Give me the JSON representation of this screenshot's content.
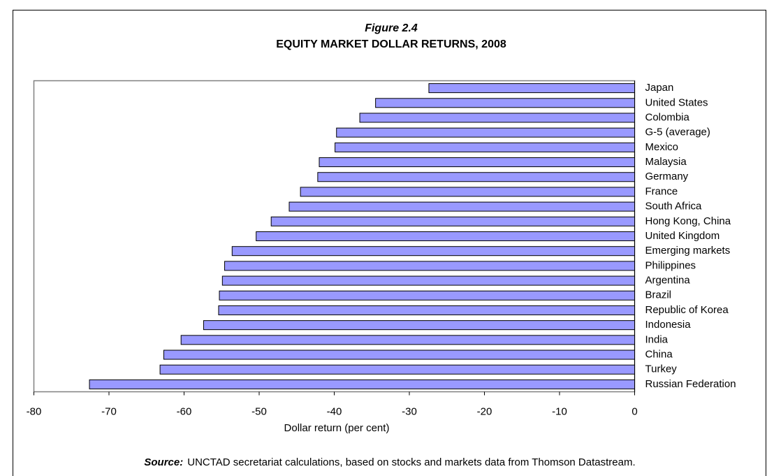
{
  "chart_data": {
    "type": "bar",
    "orientation": "horizontal",
    "figure_label": "Figure 2.4",
    "title": "EQUITY MARKET DOLLAR RETURNS, 2008",
    "x_label": "Dollar return (per cent)",
    "source_label": "Source:",
    "source_text": "UNCTAD secretariat calculations, based on stocks and markets data from Thomson Datastream.",
    "categories": [
      "Japan",
      "United States",
      "Colombia",
      "G-5 (average)",
      "Mexico",
      "Malaysia",
      "Germany",
      "France",
      "South Africa",
      "Hong Kong, China",
      "United Kingdom",
      "Emerging markets",
      "Philippines",
      "Argentina",
      "Brazil",
      "Republic of Korea",
      "Indonesia",
      "India",
      "China",
      "Turkey",
      "Russian Federation"
    ],
    "values": [
      -27.4,
      -34.5,
      -36.6,
      -39.7,
      -39.9,
      -42.0,
      -42.2,
      -44.5,
      -46.0,
      -48.4,
      -50.4,
      -53.6,
      -54.6,
      -54.9,
      -55.3,
      -55.4,
      -57.4,
      -60.4,
      -62.7,
      -63.2,
      -72.6
    ],
    "color": "#9999ff",
    "xlim": [
      -80,
      0
    ],
    "xticks": [
      -80,
      -70,
      -60,
      -50,
      -40,
      -30,
      -20,
      -10,
      0
    ],
    "grid": false
  }
}
